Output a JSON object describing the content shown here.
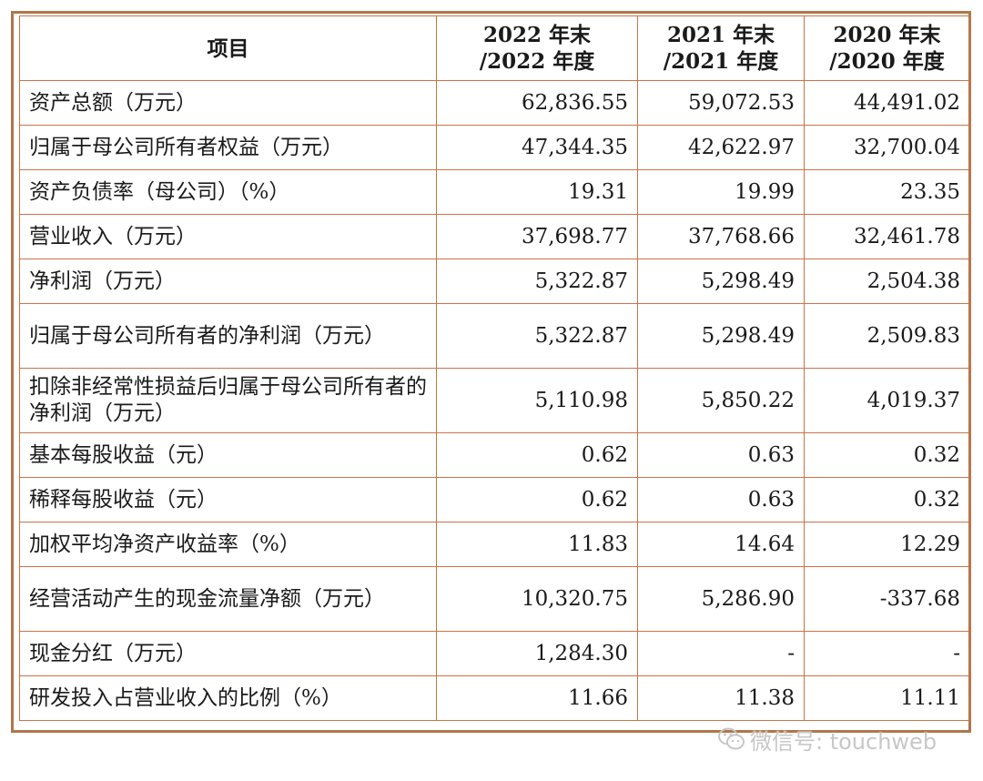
{
  "table": {
    "headers": [
      "项目",
      "2022 年末\n/2022 年度",
      "2021 年末\n/2021 年度",
      "2020 年末\n/2020 年度"
    ],
    "rows": [
      {
        "label": "资产总额（万元）",
        "values": [
          "62,836.55",
          "59,072.53",
          "44,491.02"
        ],
        "tall": false
      },
      {
        "label": "归属于母公司所有者权益（万元）",
        "values": [
          "47,344.35",
          "42,622.97",
          "32,700.04"
        ],
        "tall": false
      },
      {
        "label": "资产负债率（母公司）（%）",
        "values": [
          "19.31",
          "19.99",
          "23.35"
        ],
        "tall": false
      },
      {
        "label": "营业收入（万元）",
        "values": [
          "37,698.77",
          "37,768.66",
          "32,461.78"
        ],
        "tall": false
      },
      {
        "label": "净利润（万元）",
        "values": [
          "5,322.87",
          "5,298.49",
          "2,504.38"
        ],
        "tall": false
      },
      {
        "label": "归属于母公司所有者的净利润（万元）",
        "values": [
          "5,322.87",
          "5,298.49",
          "2,509.83"
        ],
        "tall": true
      },
      {
        "label": "扣除非经常性损益后归属于母公司所有者的净利润（万元）",
        "values": [
          "5,110.98",
          "5,850.22",
          "4,019.37"
        ],
        "tall": true
      },
      {
        "label": "基本每股收益（元）",
        "values": [
          "0.62",
          "0.63",
          "0.32"
        ],
        "tall": false
      },
      {
        "label": "稀释每股收益（元）",
        "values": [
          "0.62",
          "0.63",
          "0.32"
        ],
        "tall": false
      },
      {
        "label": "加权平均净资产收益率（%）",
        "values": [
          "11.83",
          "14.64",
          "12.29"
        ],
        "tall": false
      },
      {
        "label": "经营活动产生的现金流量净额（万元）",
        "values": [
          "10,320.75",
          "5,286.90",
          "-337.68"
        ],
        "tall": true
      },
      {
        "label": "现金分红（万元）",
        "values": [
          "1,284.30",
          "-",
          "-"
        ],
        "tall": false
      },
      {
        "label": "研发投入占营业收入的比例（%）",
        "values": [
          "11.66",
          "11.38",
          "11.11"
        ],
        "tall": false
      }
    ]
  },
  "watermark": {
    "text": "微信号: touchweb",
    "icon": "wechat-icon"
  },
  "colors": {
    "border": "#c8744a",
    "frame": "#b0764a"
  }
}
